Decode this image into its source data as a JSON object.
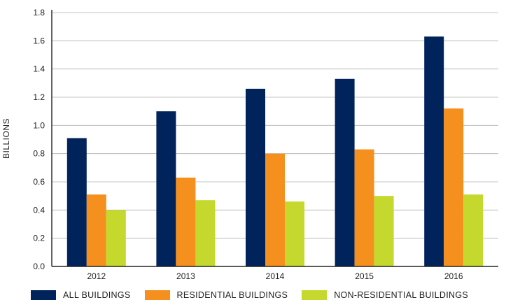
{
  "chart_data": {
    "type": "bar",
    "categories": [
      "2012",
      "2013",
      "2014",
      "2015",
      "2016"
    ],
    "series": [
      {
        "name": "ALL BUILDINGS",
        "color": "#00235b",
        "values": [
          0.91,
          1.1,
          1.26,
          1.33,
          1.63
        ]
      },
      {
        "name": "RESIDENTIAL BUILDINGS",
        "color": "#f5901e",
        "values": [
          0.51,
          0.63,
          0.8,
          0.83,
          1.12
        ]
      },
      {
        "name": "NON-RESIDENTIAL BUILDINGS",
        "color": "#c4d82e",
        "values": [
          0.4,
          0.47,
          0.46,
          0.5,
          0.51
        ]
      }
    ],
    "ylabel": "BILLIONS",
    "xlabel": "",
    "ylim": [
      0,
      1.8
    ],
    "yticks": [
      "0.0",
      "0.2",
      "0.4",
      "0.6",
      "0.8",
      "1.0",
      "1.2",
      "1.4",
      "1.6",
      "1.8"
    ],
    "grid": true,
    "legend_position": "bottom"
  }
}
